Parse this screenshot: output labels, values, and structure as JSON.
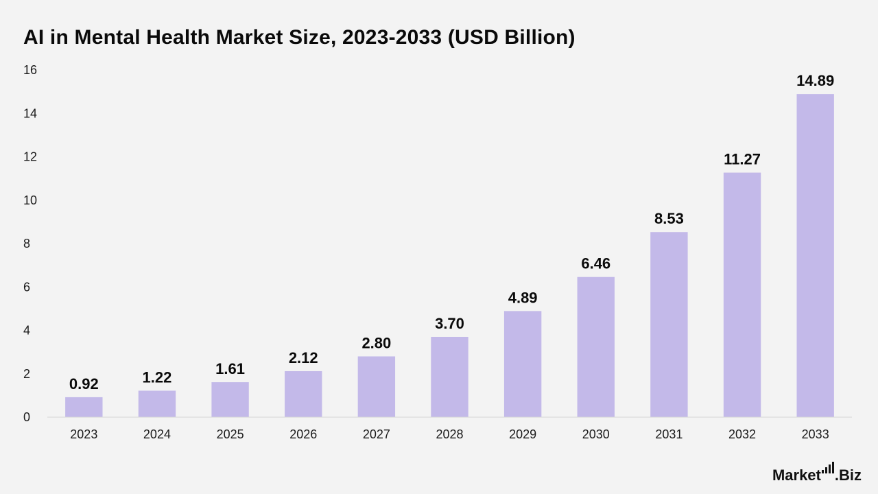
{
  "chart_data": {
    "type": "bar",
    "title": "AI in Mental Health Market Size, 2023-2033 (USD Billion)",
    "categories": [
      "2023",
      "2024",
      "2025",
      "2026",
      "2027",
      "2028",
      "2029",
      "2030",
      "2031",
      "2032",
      "2033"
    ],
    "values": [
      0.92,
      1.22,
      1.61,
      2.12,
      2.8,
      3.7,
      4.89,
      6.46,
      8.53,
      11.27,
      14.89
    ],
    "value_labels": [
      "0.92",
      "1.22",
      "1.61",
      "2.12",
      "2.80",
      "3.70",
      "4.89",
      "6.46",
      "8.53",
      "11.27",
      "14.89"
    ],
    "ylim": [
      0,
      16
    ],
    "yticks": [
      0,
      2,
      4,
      6,
      8,
      10,
      12,
      14,
      16
    ],
    "xlabel": "",
    "ylabel": "",
    "grid": false,
    "legend": "none",
    "bar_color": "#c3b9e9",
    "background_color": "#f3f3f3"
  },
  "branding": {
    "logo_text_left": "Market",
    "logo_text_right": ".Biz"
  }
}
